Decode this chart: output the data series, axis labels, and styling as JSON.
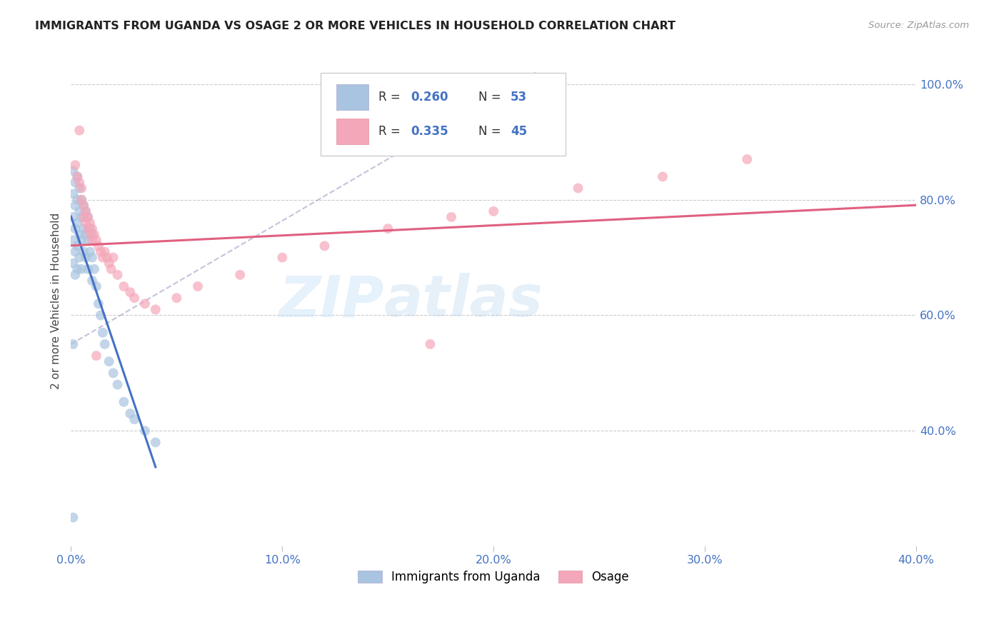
{
  "title": "IMMIGRANTS FROM UGANDA VS OSAGE 2 OR MORE VEHICLES IN HOUSEHOLD CORRELATION CHART",
  "source": "Source: ZipAtlas.com",
  "ylabel": "2 or more Vehicles in Household",
  "xlim": [
    0.0,
    0.4
  ],
  "ylim": [
    0.2,
    1.05
  ],
  "x_tick_positions": [
    0.0,
    0.1,
    0.2,
    0.3,
    0.4
  ],
  "x_tick_labels": [
    "0.0%",
    "10.0%",
    "20.0%",
    "30.0%",
    "40.0%"
  ],
  "y_tick_positions": [
    0.4,
    0.6,
    0.8,
    1.0
  ],
  "y_tick_labels": [
    "40.0%",
    "60.0%",
    "80.0%",
    "100.0%"
  ],
  "legend_label1": "Immigrants from Uganda",
  "legend_label2": "Osage",
  "R1": "0.260",
  "N1": "53",
  "R2": "0.335",
  "N2": "45",
  "color1": "#a8c4e0",
  "color2": "#f4a7b9",
  "line_color1": "#4472c4",
  "line_color2": "#e06080",
  "dash_color": "#aaaacc",
  "watermark": "ZIPatlas",
  "tick_color": "#4472c4",
  "title_color": "#222222",
  "source_color": "#999999",
  "grid_color": "#cccccc",
  "scatter_alpha": 0.7,
  "scatter_size": 100,
  "blue_x": [
    0.001,
    0.001,
    0.001,
    0.001,
    0.001,
    0.002,
    0.002,
    0.002,
    0.002,
    0.002,
    0.003,
    0.003,
    0.003,
    0.003,
    0.003,
    0.004,
    0.004,
    0.004,
    0.004,
    0.005,
    0.005,
    0.005,
    0.005,
    0.006,
    0.006,
    0.006,
    0.007,
    0.007,
    0.007,
    0.008,
    0.008,
    0.008,
    0.009,
    0.009,
    0.01,
    0.01,
    0.01,
    0.011,
    0.012,
    0.013,
    0.014,
    0.015,
    0.016,
    0.018,
    0.02,
    0.022,
    0.025,
    0.028,
    0.03,
    0.035,
    0.04,
    0.001,
    0.001
  ],
  "blue_y": [
    0.85,
    0.81,
    0.77,
    0.73,
    0.69,
    0.83,
    0.79,
    0.75,
    0.71,
    0.67,
    0.84,
    0.8,
    0.76,
    0.72,
    0.68,
    0.82,
    0.78,
    0.74,
    0.7,
    0.8,
    0.77,
    0.73,
    0.68,
    0.79,
    0.75,
    0.71,
    0.78,
    0.74,
    0.7,
    0.77,
    0.73,
    0.68,
    0.75,
    0.71,
    0.74,
    0.7,
    0.66,
    0.68,
    0.65,
    0.62,
    0.6,
    0.57,
    0.55,
    0.52,
    0.5,
    0.48,
    0.45,
    0.43,
    0.42,
    0.4,
    0.38,
    0.55,
    0.25
  ],
  "pink_x": [
    0.002,
    0.003,
    0.004,
    0.005,
    0.005,
    0.006,
    0.006,
    0.007,
    0.007,
    0.008,
    0.008,
    0.009,
    0.009,
    0.01,
    0.01,
    0.011,
    0.012,
    0.013,
    0.014,
    0.015,
    0.016,
    0.017,
    0.018,
    0.019,
    0.02,
    0.022,
    0.025,
    0.028,
    0.03,
    0.035,
    0.04,
    0.05,
    0.06,
    0.08,
    0.1,
    0.12,
    0.15,
    0.18,
    0.2,
    0.24,
    0.28,
    0.32,
    0.004,
    0.012,
    0.17
  ],
  "pink_y": [
    0.86,
    0.84,
    0.83,
    0.82,
    0.8,
    0.79,
    0.77,
    0.78,
    0.76,
    0.77,
    0.75,
    0.76,
    0.74,
    0.75,
    0.73,
    0.74,
    0.73,
    0.72,
    0.71,
    0.7,
    0.71,
    0.7,
    0.69,
    0.68,
    0.7,
    0.67,
    0.65,
    0.64,
    0.63,
    0.62,
    0.61,
    0.63,
    0.65,
    0.67,
    0.7,
    0.72,
    0.75,
    0.77,
    0.78,
    0.82,
    0.84,
    0.87,
    0.92,
    0.53,
    0.55
  ]
}
